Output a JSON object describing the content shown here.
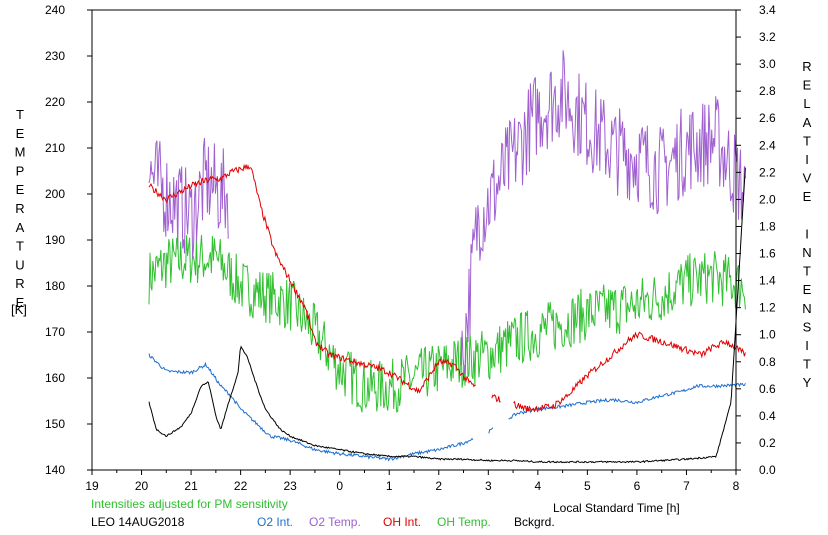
{
  "chart_data": {
    "type": "line",
    "xlabel": "Local Standard Time [h]",
    "x_ticks": [
      "19",
      "20",
      "21",
      "22",
      "23",
      "0",
      "1",
      "2",
      "3",
      "4",
      "5",
      "6",
      "7",
      "8"
    ],
    "x_range_hours": [
      19,
      32
    ],
    "ylabel_left": "TEMPERATURE",
    "ylabel_left_unit": "[K]",
    "ylim_left": [
      140,
      240
    ],
    "y_ticks_left": [
      "140",
      "150",
      "160",
      "170",
      "180",
      "190",
      "200",
      "210",
      "220",
      "230",
      "240"
    ],
    "ylabel_right": "RELATIVE INTENSITY",
    "ylim_right": [
      0.0,
      3.4
    ],
    "y_ticks_right": [
      "0.0",
      "0.2",
      "0.4",
      "0.6",
      "0.8",
      "1.0",
      "1.2",
      "1.4",
      "1.6",
      "1.8",
      "2.0",
      "2.2",
      "2.4",
      "2.6",
      "2.8",
      "3.0",
      "3.2",
      "3.4"
    ],
    "note": "Intensities adjusted for PM sensitivity",
    "station": "LEO 14AUG2018",
    "series": [
      {
        "name": "O2 Int.",
        "axis": "right",
        "color": "#1e6fd0",
        "noise": 0.012,
        "points": [
          [
            20.15,
            0.85
          ],
          [
            20.5,
            0.73
          ],
          [
            21.0,
            0.72
          ],
          [
            21.3,
            0.78
          ],
          [
            21.6,
            0.62
          ],
          [
            21.8,
            0.55
          ],
          [
            22.0,
            0.45
          ],
          [
            22.3,
            0.35
          ],
          [
            22.6,
            0.25
          ],
          [
            23.0,
            0.22
          ],
          [
            23.5,
            0.15
          ],
          [
            24.0,
            0.12
          ],
          [
            24.5,
            0.1
          ],
          [
            25.0,
            0.08
          ],
          [
            25.5,
            0.12
          ],
          [
            26.0,
            0.15
          ],
          [
            26.5,
            0.2
          ],
          [
            27.0,
            0.28
          ],
          [
            27.4,
            0.38
          ],
          [
            27.6,
            0.42
          ],
          [
            28.0,
            0.45
          ],
          [
            28.5,
            0.47
          ],
          [
            29.0,
            0.5
          ],
          [
            29.5,
            0.52
          ],
          [
            30.0,
            0.5
          ],
          [
            30.5,
            0.55
          ],
          [
            30.9,
            0.58
          ],
          [
            31.2,
            0.62
          ],
          [
            31.5,
            0.62
          ],
          [
            32.2,
            0.63
          ]
        ],
        "gaps": [
          [
            26.7,
            27.0
          ],
          [
            27.1,
            27.4
          ]
        ]
      },
      {
        "name": "O2 Temp.",
        "axis": "left",
        "color": "#a060d0",
        "noise": 10,
        "points": [
          [
            20.15,
            205
          ],
          [
            20.5,
            200
          ],
          [
            21.0,
            195
          ],
          [
            21.3,
            203
          ],
          [
            21.6,
            200
          ],
          [
            21.75,
            200
          ]
        ],
        "points2": [
          [
            26.45,
            162
          ],
          [
            26.8,
            195
          ],
          [
            27.1,
            200
          ],
          [
            27.6,
            210
          ],
          [
            28.0,
            218
          ],
          [
            28.5,
            222
          ],
          [
            29.0,
            215
          ],
          [
            29.5,
            210
          ],
          [
            30.0,
            208
          ],
          [
            30.5,
            205
          ],
          [
            31.0,
            210
          ],
          [
            31.6,
            212
          ],
          [
            32.2,
            200
          ]
        ]
      },
      {
        "name": "OH Int.",
        "axis": "right",
        "color": "#e00000",
        "noise": 0.025,
        "points": [
          [
            20.15,
            2.1
          ],
          [
            20.5,
            2.0
          ],
          [
            21.0,
            2.1
          ],
          [
            21.4,
            2.15
          ],
          [
            21.6,
            2.15
          ],
          [
            21.8,
            2.2
          ],
          [
            22.2,
            2.25
          ],
          [
            22.4,
            1.95
          ],
          [
            22.7,
            1.6
          ],
          [
            23.0,
            1.4
          ],
          [
            23.3,
            1.2
          ],
          [
            23.5,
            0.95
          ],
          [
            23.8,
            0.85
          ],
          [
            24.3,
            0.8
          ],
          [
            24.8,
            0.75
          ],
          [
            25.0,
            0.72
          ],
          [
            25.3,
            0.65
          ],
          [
            25.6,
            0.58
          ],
          [
            26.0,
            0.8
          ],
          [
            26.3,
            0.78
          ],
          [
            26.6,
            0.65
          ],
          [
            27.0,
            0.55
          ],
          [
            27.4,
            0.5
          ],
          [
            27.8,
            0.45
          ],
          [
            28.3,
            0.47
          ],
          [
            28.6,
            0.55
          ],
          [
            29.0,
            0.7
          ],
          [
            29.5,
            0.85
          ],
          [
            29.8,
            0.95
          ],
          [
            30.0,
            1.0
          ],
          [
            30.5,
            0.95
          ],
          [
            30.9,
            0.9
          ],
          [
            31.3,
            0.85
          ],
          [
            31.5,
            0.9
          ],
          [
            31.8,
            0.95
          ],
          [
            32.2,
            0.85
          ]
        ],
        "gaps": [
          [
            26.75,
            27.05
          ],
          [
            27.25,
            27.5
          ]
        ]
      },
      {
        "name": "OH Temp.",
        "axis": "left",
        "color": "#30c030",
        "noise": 6,
        "points": [
          [
            20.15,
            182
          ],
          [
            20.5,
            185
          ],
          [
            21.0,
            186
          ],
          [
            21.5,
            186
          ],
          [
            22.0,
            180
          ],
          [
            22.5,
            178
          ],
          [
            23.0,
            176
          ],
          [
            23.5,
            170
          ],
          [
            24.0,
            162
          ],
          [
            24.5,
            158
          ],
          [
            25.0,
            158
          ],
          [
            25.5,
            160
          ],
          [
            26.0,
            162
          ],
          [
            26.5,
            164
          ],
          [
            27.0,
            165
          ],
          [
            27.5,
            168
          ],
          [
            28.0,
            170
          ],
          [
            28.5,
            172
          ],
          [
            29.0,
            174
          ],
          [
            29.5,
            175
          ],
          [
            30.0,
            176
          ],
          [
            30.5,
            178
          ],
          [
            31.0,
            181
          ],
          [
            31.5,
            182
          ],
          [
            32.2,
            180
          ]
        ]
      },
      {
        "name": "Bckgrd.",
        "axis": "right",
        "color": "#000000",
        "noise": 0.006,
        "points": [
          [
            20.15,
            0.5
          ],
          [
            20.3,
            0.3
          ],
          [
            20.5,
            0.25
          ],
          [
            20.8,
            0.32
          ],
          [
            21.0,
            0.42
          ],
          [
            21.2,
            0.62
          ],
          [
            21.35,
            0.65
          ],
          [
            21.5,
            0.4
          ],
          [
            21.6,
            0.3
          ],
          [
            21.8,
            0.55
          ],
          [
            21.95,
            0.72
          ],
          [
            22.0,
            0.92
          ],
          [
            22.15,
            0.82
          ],
          [
            22.3,
            0.65
          ],
          [
            22.5,
            0.45
          ],
          [
            22.8,
            0.3
          ],
          [
            23.0,
            0.25
          ],
          [
            23.5,
            0.18
          ],
          [
            24.0,
            0.15
          ],
          [
            24.5,
            0.12
          ],
          [
            25.0,
            0.1
          ],
          [
            25.5,
            0.1
          ],
          [
            26.0,
            0.08
          ],
          [
            26.5,
            0.08
          ],
          [
            27.0,
            0.07
          ],
          [
            27.5,
            0.07
          ],
          [
            28.0,
            0.06
          ],
          [
            29.0,
            0.06
          ],
          [
            30.0,
            0.06
          ],
          [
            31.0,
            0.08
          ],
          [
            31.6,
            0.1
          ],
          [
            31.9,
            0.5
          ],
          [
            32.05,
            1.4
          ],
          [
            32.2,
            2.3
          ]
        ]
      }
    ],
    "x_minor_ticks": true,
    "grid": false
  },
  "legend": {
    "note": "Intensities adjusted for PM sensitivity",
    "station": "LEO 14AUG2018",
    "items": [
      {
        "label": "O2 Int.",
        "color": "#1e6fd0"
      },
      {
        "label": "O2 Temp.",
        "color": "#a060d0"
      },
      {
        "label": "OH Int.",
        "color": "#e00000"
      },
      {
        "label": "OH Temp.",
        "color": "#30c030"
      },
      {
        "label": "Bckgrd.",
        "color": "#000000"
      }
    ]
  },
  "colors": {
    "note_text": "#30c030"
  }
}
